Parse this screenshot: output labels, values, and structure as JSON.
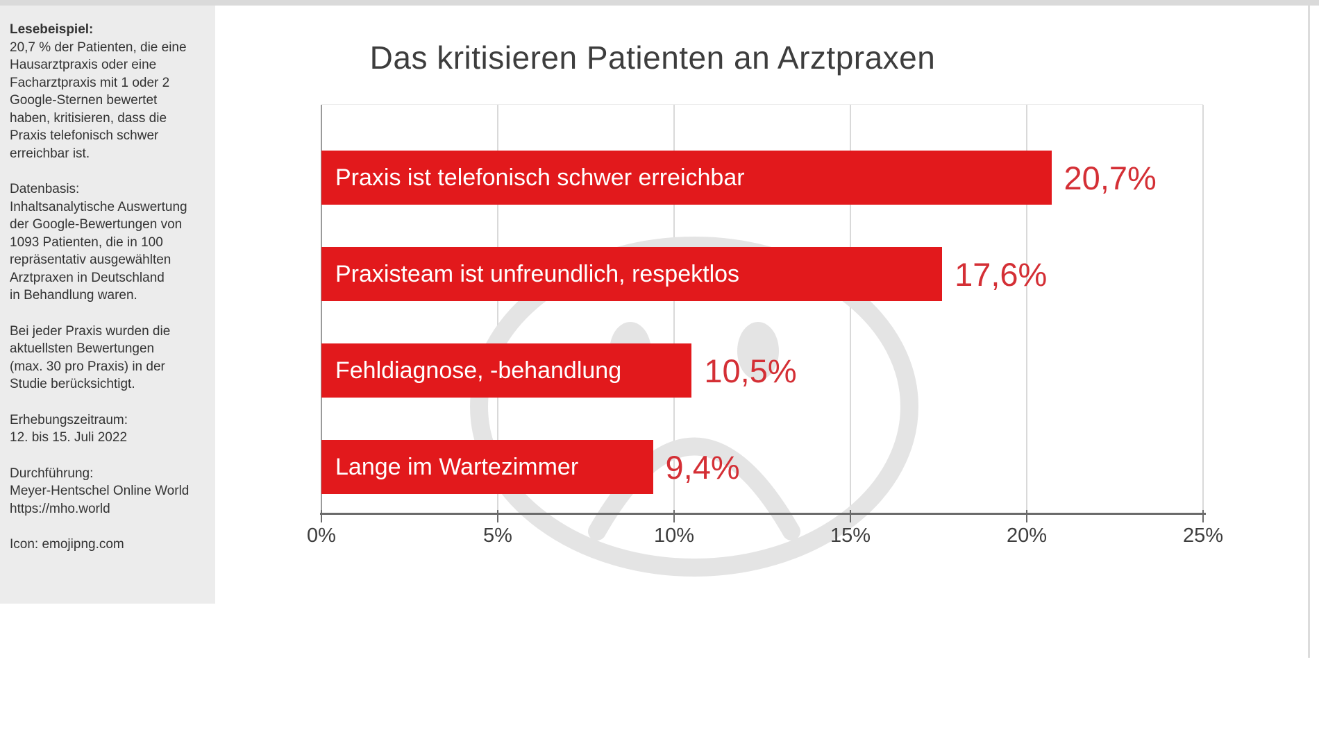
{
  "sidebar": {
    "blocks": [
      {
        "title": "Lesebeispiel:",
        "text": "20,7 % der Patienten, die eine\nHausarztpraxis oder eine\nFacharztpraxis mit 1 oder 2\nGoogle-Sternen bewertet\nhaben,  kritisieren, dass die\nPraxis telefonisch schwer\nerreichbar ist."
      },
      {
        "title": "Datenbasis:",
        "text": "Inhaltsanalytische Auswertung\nder Google-Bewertungen von\n1093 Patienten, die in 100\nrepräsentativ ausgewählten\nArztpraxen in Deutschland\nin Behandlung waren."
      },
      {
        "title": "",
        "text": "Bei jeder Praxis wurden die\naktuellsten Bewertungen\n(max. 30 pro Praxis) in der\nStudie berücksichtigt."
      },
      {
        "title": "Erhebungszeitraum:",
        "text": "12. bis 15. Juli 2022"
      },
      {
        "title": "Durchführung:",
        "text": "Meyer-Hentschel Online World\nhttps://mho.world"
      },
      {
        "title": "",
        "text": "Icon: emojipng.com"
      }
    ]
  },
  "chart_data": {
    "type": "bar",
    "orientation": "horizontal",
    "title": "Das kritisieren Patienten an Arztpraxen",
    "categories": [
      "Praxis ist telefonisch schwer erreichbar",
      "Praxisteam ist unfreundlich, respektlos",
      "Fehldiagnose, -behandlung",
      "Lange im Wartezimmer"
    ],
    "values": [
      20.7,
      17.6,
      10.5,
      9.4
    ],
    "value_labels": [
      "20,7%",
      "17,6%",
      "10,5%",
      "9,4%"
    ],
    "xlim": [
      0,
      25
    ],
    "x_tick_values": [
      0,
      5,
      10,
      15,
      20,
      25
    ],
    "x_tick_labels": [
      "0%",
      "5%",
      "10%",
      "15%",
      "20%",
      "25%"
    ],
    "grid": true,
    "legend": false,
    "watermark": "sad-face-emoji",
    "colors": {
      "bar": "#e2191c",
      "bar_label": "#ffffff",
      "value_label": "#d42f35",
      "grid": "#d9d9d9",
      "axis": "#6a6a6a",
      "watermark": "#e4e4e4",
      "title": "#3d3d3d"
    }
  }
}
